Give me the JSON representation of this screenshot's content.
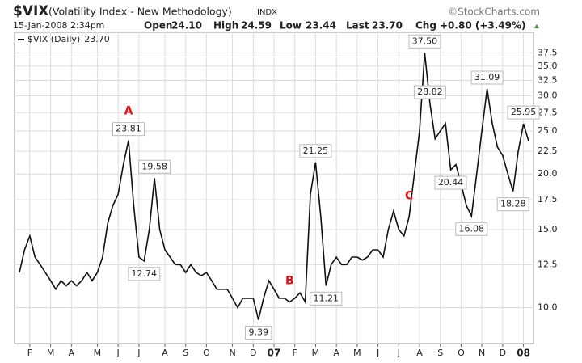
{
  "chart_data": {
    "type": "line",
    "title": "$VIX",
    "subtitle": "(Volatility Index - New Methodology)",
    "exchange": "INDX",
    "credit": "©StockCharts.com",
    "quote": {
      "date": "15-Jan-2008 2:34pm",
      "items": [
        {
          "label": "Open",
          "value": "24.10"
        },
        {
          "label": "High",
          "value": "24.59"
        },
        {
          "label": "Low",
          "value": "23.44"
        },
        {
          "label": "Last",
          "value": "23.70"
        },
        {
          "label": "Chg",
          "value": "+0.80 (+3.49%)"
        }
      ]
    },
    "legend_value": "23.70",
    "categories": [
      null,
      null,
      "F",
      null,
      null,
      null,
      "M",
      null,
      null,
      null,
      "A",
      null,
      null,
      null,
      null,
      "M",
      null,
      null,
      null,
      "J",
      null,
      null,
      null,
      "J",
      null,
      null,
      null,
      null,
      "A",
      null,
      null,
      null,
      "S",
      null,
      null,
      null,
      "O",
      null,
      null,
      null,
      null,
      "N",
      null,
      null,
      null,
      "D",
      null,
      null,
      null,
      "07",
      null,
      null,
      null,
      "F",
      null,
      null,
      null,
      "M",
      null,
      null,
      null,
      "A",
      null,
      null,
      null,
      "M",
      null,
      null,
      null,
      "J",
      null,
      null,
      null,
      "J",
      null,
      null,
      null,
      "A",
      null,
      null,
      null,
      "S",
      null,
      null,
      null,
      "O",
      null,
      null,
      null,
      "N",
      null,
      null,
      null,
      "D",
      null,
      null,
      null,
      "08",
      null
    ],
    "series": [
      {
        "name": "$VIX (Daily)",
        "color": "#111111",
        "values": [
          12,
          13.5,
          14.5,
          13,
          12.5,
          12,
          11.5,
          11,
          11.5,
          11.2,
          11.5,
          11.2,
          11.5,
          12,
          11.5,
          12,
          13,
          15.5,
          17,
          18,
          21,
          23.81,
          17,
          13,
          12.74,
          15,
          19.58,
          15,
          13.5,
          13,
          12.5,
          12.5,
          12,
          12.5,
          12,
          11.8,
          12,
          11.5,
          11,
          11,
          11,
          10.5,
          10,
          10.5,
          10.5,
          10.5,
          9.39,
          10.5,
          11.5,
          11,
          10.5,
          10.5,
          10.3,
          10.5,
          10.8,
          10.3,
          18,
          21.25,
          16,
          11.21,
          12.5,
          13,
          12.5,
          12.5,
          13,
          13,
          12.8,
          13,
          13.5,
          13.5,
          13,
          15,
          16.5,
          15,
          14.5,
          16,
          20,
          25,
          37.5,
          28.82,
          24,
          25,
          26,
          20.44,
          21,
          19,
          17,
          16.08,
          20,
          25,
          31.09,
          26,
          23,
          22,
          20,
          18.28,
          22.5,
          25.95,
          23.7
        ],
        "value_labels": [
          null,
          null,
          null,
          null,
          null,
          null,
          null,
          null,
          null,
          null,
          null,
          null,
          null,
          null,
          null,
          null,
          null,
          null,
          null,
          null,
          null,
          "23.81",
          null,
          null,
          "12.74",
          null,
          "19.58",
          null,
          null,
          null,
          null,
          null,
          null,
          null,
          null,
          null,
          null,
          null,
          null,
          null,
          null,
          null,
          null,
          null,
          null,
          null,
          "9.39",
          null,
          null,
          null,
          null,
          null,
          null,
          null,
          null,
          null,
          null,
          "21.25",
          null,
          "11.21",
          null,
          null,
          null,
          null,
          null,
          null,
          null,
          null,
          null,
          null,
          null,
          null,
          null,
          null,
          null,
          null,
          null,
          null,
          "37.50",
          "28.82",
          null,
          null,
          null,
          "20.44",
          null,
          null,
          null,
          "16.08",
          null,
          null,
          "31.09",
          null,
          null,
          null,
          null,
          "18.28",
          null,
          "25.95",
          null
        ],
        "point_labels": [
          null,
          null,
          null,
          null,
          null,
          null,
          null,
          null,
          null,
          null,
          null,
          null,
          null,
          null,
          null,
          null,
          null,
          null,
          null,
          null,
          null,
          "A",
          null,
          null,
          null,
          null,
          null,
          null,
          null,
          null,
          null,
          null,
          null,
          null,
          null,
          null,
          null,
          null,
          null,
          null,
          null,
          null,
          null,
          null,
          null,
          null,
          null,
          null,
          null,
          null,
          null,
          null,
          "B",
          null,
          null,
          null,
          null,
          null,
          null,
          null,
          null,
          null,
          null,
          null,
          null,
          null,
          null,
          null,
          null,
          null,
          null,
          null,
          null,
          null,
          null,
          "C",
          null,
          null,
          null,
          null,
          null,
          null,
          null,
          null,
          null,
          null,
          null,
          null,
          null,
          null,
          null,
          null,
          null,
          null,
          null,
          null,
          null,
          null,
          null
        ]
      }
    ],
    "log_scale": true,
    "grid": true,
    "annotation_color": "#dd1111",
    "ylim": [
      8.3,
      41.7
    ],
    "yticks": [
      {
        "value": 10,
        "label": "10.0"
      },
      12.5,
      {
        "value": 15,
        "label": "15.0"
      },
      17.5,
      {
        "value": 20,
        "label": "20.0"
      },
      22.5,
      {
        "value": 25,
        "label": "25.0"
      },
      27.5,
      {
        "value": 30,
        "label": "30.0"
      },
      32.5,
      {
        "value": 35,
        "label": "35.0"
      },
      37.5
    ]
  }
}
